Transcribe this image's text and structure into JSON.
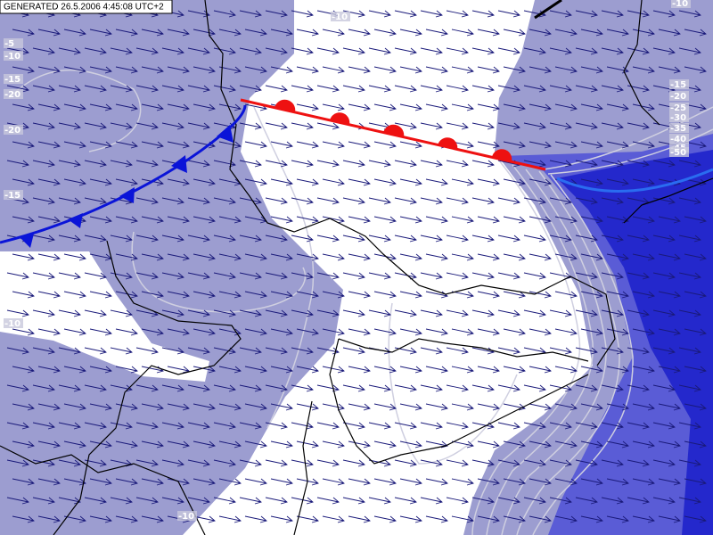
{
  "header": {
    "generated": "GENERATED 26.5.2006 4:45:08 UTC+2"
  },
  "contour_labels": [
    "-10",
    "-5",
    "-10",
    "-15",
    "-20",
    "-20",
    "-15",
    "-10",
    "-10",
    "-15",
    "-20",
    "-25",
    "-30",
    "-35",
    "-40",
    "-45",
    "-50",
    "-10"
  ]
}
